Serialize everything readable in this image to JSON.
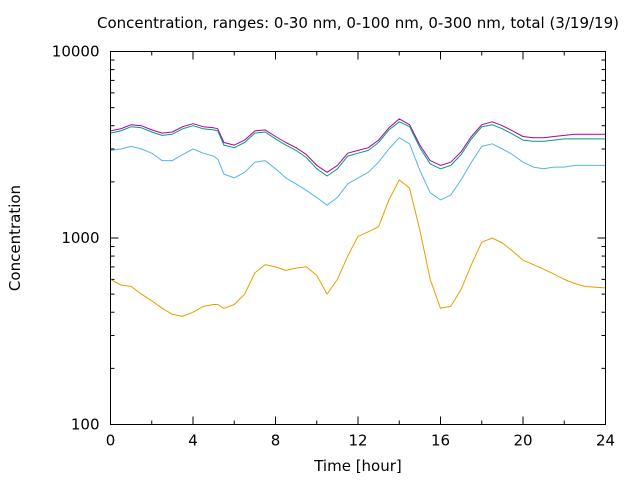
{
  "chart_data": {
    "type": "line",
    "title": "Concentration, ranges: 0-30 nm, 0-100 nm, 0-300 nm, total (3/19/19)",
    "xlabel": "Time [hour]",
    "ylabel": "Concentration",
    "xlim": [
      0,
      24
    ],
    "ylim": [
      100,
      10000
    ],
    "yscale": "log",
    "grid": false,
    "legend": "none",
    "x_ticks": [
      "0",
      "4",
      "8",
      "12",
      "16",
      "20",
      "24"
    ],
    "y_ticks": [
      "100",
      "1000",
      "10000"
    ],
    "x": [
      0,
      0.5,
      1,
      1.5,
      2,
      2.5,
      3,
      3.5,
      4,
      4.5,
      5,
      5.2,
      5.5,
      6,
      6.5,
      7,
      7.5,
      8,
      8.5,
      9,
      9.5,
      10,
      10.5,
      11,
      11.5,
      12,
      12.5,
      13,
      13.5,
      14,
      14.5,
      15,
      15.5,
      16,
      16.5,
      17,
      17.5,
      18,
      18.5,
      19,
      19.5,
      20,
      20.5,
      21,
      21.5,
      22,
      22.5,
      23,
      23.5,
      24
    ],
    "series": [
      {
        "color": "#aa00aa",
        "values": [
          3750,
          3850,
          4050,
          4000,
          3800,
          3650,
          3700,
          3950,
          4100,
          3950,
          3900,
          3850,
          3250,
          3150,
          3350,
          3750,
          3800,
          3500,
          3250,
          3050,
          2800,
          2450,
          2250,
          2450,
          2850,
          2950,
          3050,
          3350,
          3900,
          4350,
          4050,
          3150,
          2600,
          2450,
          2550,
          2900,
          3500,
          4050,
          4200,
          4000,
          3750,
          3500,
          3450,
          3450,
          3500,
          3550,
          3600,
          3600,
          3600,
          3600
        ]
      },
      {
        "color": "#009e73",
        "values": [
          3650,
          3750,
          3950,
          3900,
          3700,
          3550,
          3600,
          3850,
          4000,
          3850,
          3800,
          3750,
          3150,
          3050,
          3250,
          3650,
          3700,
          3400,
          3150,
          2950,
          2700,
          2350,
          2150,
          2350,
          2750,
          2850,
          2950,
          3250,
          3800,
          4200,
          3950,
          3050,
          2500,
          2350,
          2450,
          2800,
          3400,
          3950,
          4050,
          3850,
          3600,
          3350,
          3300,
          3300,
          3350,
          3400,
          3400,
          3400,
          3400,
          3400
        ]
      },
      {
        "color": "#56b4e9",
        "values": [
          2950,
          3000,
          3100,
          3000,
          2850,
          2600,
          2600,
          2800,
          3000,
          2850,
          2750,
          2650,
          2200,
          2100,
          2250,
          2550,
          2600,
          2350,
          2100,
          1950,
          1800,
          1650,
          1500,
          1650,
          1950,
          2100,
          2250,
          2550,
          3000,
          3450,
          3200,
          2300,
          1750,
          1600,
          1700,
          2050,
          2550,
          3100,
          3200,
          3000,
          2800,
          2550,
          2400,
          2350,
          2400,
          2400,
          2450,
          2450,
          2450,
          2450
        ]
      },
      {
        "color": "#e69f00",
        "values": [
          600,
          560,
          550,
          500,
          460,
          420,
          390,
          380,
          400,
          430,
          440,
          440,
          420,
          440,
          500,
          650,
          720,
          700,
          670,
          690,
          700,
          630,
          500,
          600,
          800,
          1020,
          1080,
          1150,
          1600,
          2050,
          1850,
          1100,
          600,
          420,
          430,
          530,
          720,
          950,
          1000,
          940,
          850,
          760,
          720,
          680,
          640,
          600,
          570,
          550,
          545,
          540
        ]
      }
    ]
  }
}
